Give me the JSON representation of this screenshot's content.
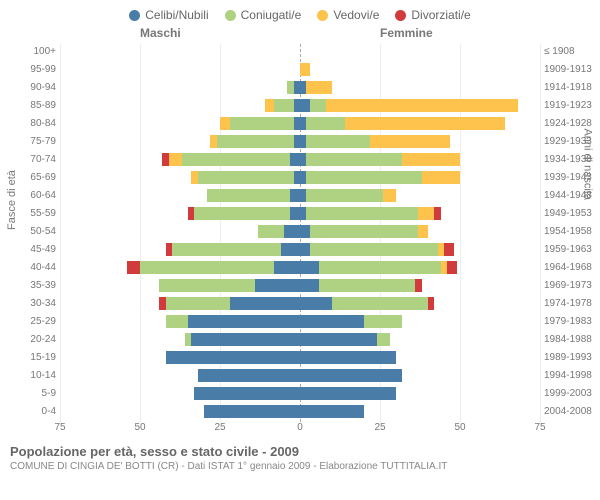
{
  "legend": [
    {
      "label": "Celibi/Nubili",
      "color": "#4a7ca8"
    },
    {
      "label": "Coniugati/e",
      "color": "#aed182"
    },
    {
      "label": "Vedovi/e",
      "color": "#fec34d"
    },
    {
      "label": "Divorziati/e",
      "color": "#d13b3b"
    }
  ],
  "headers": {
    "m": "Maschi",
    "f": "Femmine"
  },
  "axis": {
    "left": "Fasce di età",
    "right": "Anni di nascita"
  },
  "colors": {
    "celibi": "#4a7ca8",
    "coniugati": "#aed182",
    "vedovi": "#fec34d",
    "divorziati": "#d13b3b",
    "grid": "#eeeeee",
    "centerline": "#aaaaaa",
    "text": "#777777",
    "bg": "#ffffff"
  },
  "xmax": 75,
  "xticks": [
    75,
    50,
    25,
    0,
    25,
    50,
    75
  ],
  "rows": [
    {
      "age": "100+",
      "birth": "≤ 1908",
      "m": [
        0,
        0,
        0,
        0
      ],
      "f": [
        0,
        0,
        0,
        0
      ]
    },
    {
      "age": "95-99",
      "birth": "1909-1913",
      "m": [
        0,
        0,
        0,
        0
      ],
      "f": [
        0,
        0,
        3,
        0
      ]
    },
    {
      "age": "90-94",
      "birth": "1914-1918",
      "m": [
        2,
        2,
        0,
        0
      ],
      "f": [
        2,
        0,
        8,
        0
      ]
    },
    {
      "age": "85-89",
      "birth": "1919-1923",
      "m": [
        2,
        6,
        3,
        0
      ],
      "f": [
        3,
        5,
        60,
        0
      ]
    },
    {
      "age": "80-84",
      "birth": "1924-1928",
      "m": [
        2,
        20,
        3,
        0
      ],
      "f": [
        2,
        12,
        50,
        0
      ]
    },
    {
      "age": "75-79",
      "birth": "1929-1933",
      "m": [
        2,
        24,
        2,
        0
      ],
      "f": [
        2,
        20,
        25,
        0
      ]
    },
    {
      "age": "70-74",
      "birth": "1934-1938",
      "m": [
        3,
        34,
        4,
        2
      ],
      "f": [
        2,
        30,
        18,
        0
      ]
    },
    {
      "age": "65-69",
      "birth": "1939-1943",
      "m": [
        2,
        30,
        2,
        0
      ],
      "f": [
        2,
        36,
        12,
        0
      ]
    },
    {
      "age": "60-64",
      "birth": "1944-1948",
      "m": [
        3,
        26,
        0,
        0
      ],
      "f": [
        2,
        24,
        4,
        0
      ]
    },
    {
      "age": "55-59",
      "birth": "1949-1953",
      "m": [
        3,
        30,
        0,
        2
      ],
      "f": [
        2,
        35,
        5,
        2
      ]
    },
    {
      "age": "50-54",
      "birth": "1954-1958",
      "m": [
        5,
        8,
        0,
        0
      ],
      "f": [
        3,
        34,
        3,
        0
      ]
    },
    {
      "age": "45-49",
      "birth": "1959-1963",
      "m": [
        6,
        34,
        0,
        2
      ],
      "f": [
        3,
        40,
        2,
        3
      ]
    },
    {
      "age": "40-44",
      "birth": "1964-1968",
      "m": [
        8,
        42,
        0,
        4
      ],
      "f": [
        6,
        38,
        2,
        3
      ]
    },
    {
      "age": "35-39",
      "birth": "1969-1973",
      "m": [
        14,
        30,
        0,
        0
      ],
      "f": [
        6,
        30,
        0,
        2
      ]
    },
    {
      "age": "30-34",
      "birth": "1974-1978",
      "m": [
        22,
        20,
        0,
        2
      ],
      "f": [
        10,
        30,
        0,
        2
      ]
    },
    {
      "age": "25-29",
      "birth": "1979-1983",
      "m": [
        35,
        7,
        0,
        0
      ],
      "f": [
        20,
        12,
        0,
        0
      ]
    },
    {
      "age": "20-24",
      "birth": "1984-1988",
      "m": [
        34,
        2,
        0,
        0
      ],
      "f": [
        24,
        4,
        0,
        0
      ]
    },
    {
      "age": "15-19",
      "birth": "1989-1993",
      "m": [
        42,
        0,
        0,
        0
      ],
      "f": [
        30,
        0,
        0,
        0
      ]
    },
    {
      "age": "10-14",
      "birth": "1994-1998",
      "m": [
        32,
        0,
        0,
        0
      ],
      "f": [
        32,
        0,
        0,
        0
      ]
    },
    {
      "age": "5-9",
      "birth": "1999-2003",
      "m": [
        33,
        0,
        0,
        0
      ],
      "f": [
        30,
        0,
        0,
        0
      ]
    },
    {
      "age": "0-4",
      "birth": "2004-2008",
      "m": [
        30,
        0,
        0,
        0
      ],
      "f": [
        20,
        0,
        0,
        0
      ]
    }
  ],
  "footer": {
    "title": "Popolazione per età, sesso e stato civile - 2009",
    "subtitle": "COMUNE DI CINGIA DE' BOTTI (CR) - Dati ISTAT 1° gennaio 2009 - Elaborazione TUTTITALIA.IT"
  }
}
